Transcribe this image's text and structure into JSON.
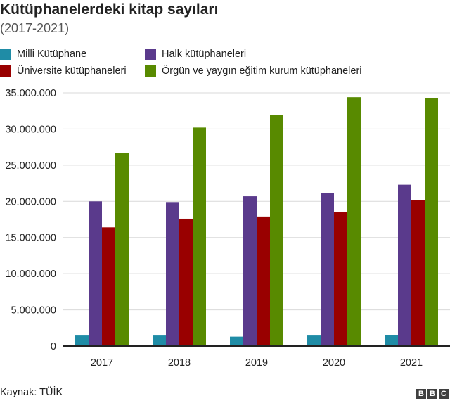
{
  "header": {
    "title": "Kütüphanelerdeki kitap sayıları",
    "subtitle": "(2017-2021)"
  },
  "footer": {
    "source": "Kaynak: TÜİK",
    "logo_letters": [
      "B",
      "B",
      "C"
    ]
  },
  "colors": {
    "milli": "#1f8ca6",
    "halk": "#5a3a8c",
    "universite": "#990000",
    "orgun": "#588a00",
    "grid": "#d9d9d9",
    "axis": "#222222"
  },
  "chart_data": {
    "type": "bar",
    "title": "Kütüphanelerdeki kitap sayıları",
    "subtitle": "(2017-2021)",
    "xlabel": "",
    "ylabel": "",
    "categories": [
      "2017",
      "2018",
      "2019",
      "2020",
      "2021"
    ],
    "ylim": [
      0,
      35000000
    ],
    "yticks": [
      0,
      5000000,
      10000000,
      15000000,
      20000000,
      25000000,
      30000000,
      35000000
    ],
    "ytick_labels": [
      "0",
      "5.000.000",
      "10.000.000",
      "15.000.000",
      "20.000.000",
      "25.000.000",
      "30.000.000",
      "35.000.000"
    ],
    "grid": true,
    "legend_position": "top",
    "series": [
      {
        "name": "Milli Kütüphane",
        "color": "#1f8ca6",
        "values": [
          1450000,
          1450000,
          1300000,
          1450000,
          1500000
        ]
      },
      {
        "name": "Halk kütüphaneleri",
        "color": "#5a3a8c",
        "values": [
          20000000,
          19900000,
          20700000,
          21100000,
          22300000
        ]
      },
      {
        "name": "Üniversite kütüphaneleri",
        "color": "#990000",
        "values": [
          16400000,
          17600000,
          17900000,
          18500000,
          20200000
        ]
      },
      {
        "name": "Örgün ve yaygın eğitim kurum kütüphaneleri",
        "color": "#588a00",
        "values": [
          26700000,
          30200000,
          31900000,
          34400000,
          34300000
        ]
      }
    ]
  }
}
